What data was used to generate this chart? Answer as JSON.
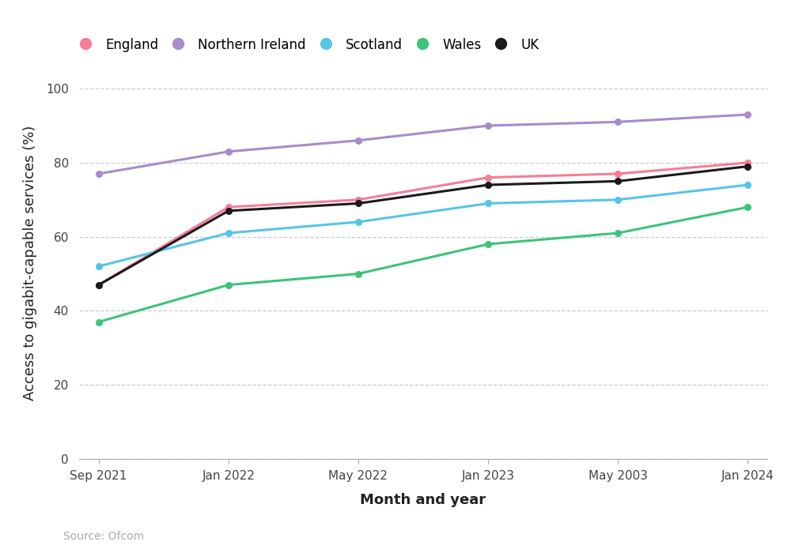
{
  "title": "",
  "xlabel": "Month and year",
  "ylabel": "Access to gigabit-capable services (%)",
  "source": "Source: Ofcom",
  "x_labels": [
    "Sep 2021",
    "Jan 2022",
    "May 2022",
    "Jan 2023",
    "May 2003",
    "Jan 2024"
  ],
  "x_positions": [
    0,
    1,
    2,
    3,
    4,
    5
  ],
  "series": [
    {
      "name": "England",
      "color": "#F87C96",
      "values": [
        47,
        68,
        70,
        76,
        77,
        80
      ]
    },
    {
      "name": "Northern Ireland",
      "color": "#A78BCC",
      "values": [
        77,
        83,
        86,
        90,
        91,
        93
      ]
    },
    {
      "name": "Scotland",
      "color": "#56C4E8",
      "values": [
        52,
        61,
        64,
        69,
        70,
        74
      ]
    },
    {
      "name": "Wales",
      "color": "#3BC47A",
      "values": [
        37,
        47,
        50,
        58,
        61,
        68
      ]
    },
    {
      "name": "UK",
      "color": "#1A1A1A",
      "values": [
        47,
        67,
        69,
        74,
        75,
        79
      ]
    }
  ],
  "ylim": [
    0,
    106
  ],
  "yticks": [
    0,
    20,
    40,
    60,
    80,
    100
  ],
  "grid_color": "#CCCCCC",
  "background_color": "#FFFFFF",
  "legend_fontsize": 12,
  "axis_label_fontsize": 13,
  "tick_fontsize": 11,
  "source_fontsize": 10
}
